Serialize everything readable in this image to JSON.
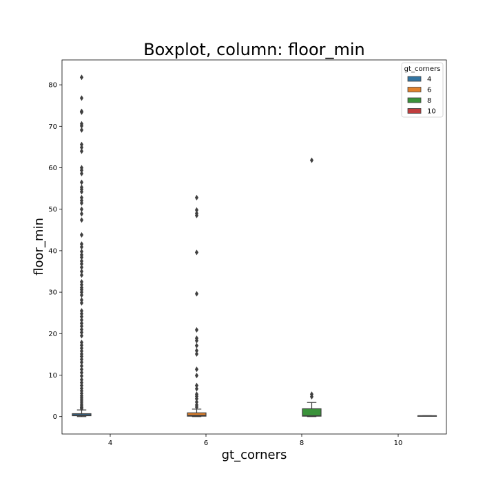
{
  "chart_data": {
    "type": "box",
    "title": "Boxplot, column: floor_min",
    "xlabel": "gt_corners",
    "ylabel": "floor_min",
    "categories": [
      "4",
      "6",
      "8",
      "10"
    ],
    "ylim": [
      -4.2,
      86
    ],
    "yticks": [
      0,
      10,
      20,
      30,
      40,
      50,
      60,
      70,
      80
    ],
    "legend": {
      "title": "gt_corners",
      "placement": "top-right",
      "entries": [
        "4",
        "6",
        "8",
        "10"
      ]
    },
    "colors": [
      "#3274a1",
      "#e1812c",
      "#3a923a",
      "#c03d3e"
    ],
    "series": [
      {
        "name": "4",
        "q1": 0.2,
        "median": 0.4,
        "q3": 0.7,
        "whisker_low": 0.0,
        "whisker_high": 1.6,
        "outliers": [
          81.8,
          76.8,
          73.6,
          73.4,
          70.6,
          70.1,
          69.1,
          65.6,
          64.9,
          64.0,
          60.0,
          59.4,
          58.6,
          56.5,
          55.3,
          54.8,
          54.2,
          52.8,
          52.1,
          51.5,
          50.0,
          48.9,
          47.4,
          43.8,
          41.6,
          40.9,
          39.8,
          39.0,
          38.4,
          37.5,
          36.8,
          36.0,
          35.0,
          34.1,
          32.5,
          31.8,
          31.1,
          30.6,
          30.0,
          29.3,
          28.1,
          27.4,
          25.5,
          24.8,
          24.1,
          23.3,
          22.5,
          21.8,
          21.0,
          20.3,
          19.5,
          17.9,
          17.2,
          16.5,
          15.8,
          15.1,
          14.5,
          13.8,
          13.1,
          12.2,
          11.4,
          10.6,
          9.8,
          8.9,
          8.2,
          7.5,
          6.8,
          6.2,
          5.6,
          5.0,
          4.5,
          4.0,
          3.5,
          3.0,
          2.6,
          2.2,
          1.9
        ]
      },
      {
        "name": "6",
        "q1": 0.1,
        "median": 0.3,
        "q3": 0.9,
        "whisker_low": 0.0,
        "whisker_high": 1.8,
        "outliers": [
          52.8,
          49.8,
          49.0,
          48.5,
          39.6,
          29.6,
          20.9,
          18.9,
          18.3,
          17.1,
          15.9,
          15.1,
          11.4,
          9.9,
          7.5,
          6.7,
          5.4,
          4.9,
          4.3,
          3.5,
          2.8,
          2.3
        ]
      },
      {
        "name": "8",
        "q1": 0.1,
        "median": 0.2,
        "q3": 1.9,
        "whisker_low": 0.0,
        "whisker_high": 3.4,
        "outliers": [
          61.8,
          5.4,
          4.8
        ]
      },
      {
        "name": "10",
        "q1": 0.2,
        "median": 0.2,
        "q3": 0.2,
        "whisker_low": 0.2,
        "whisker_high": 0.2,
        "outliers": []
      }
    ]
  }
}
